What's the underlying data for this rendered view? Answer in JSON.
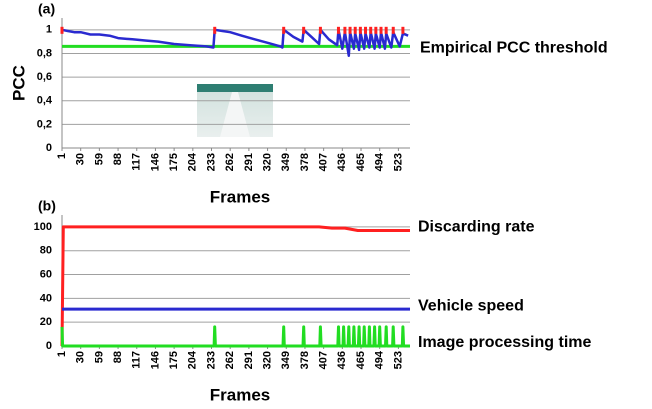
{
  "chart_data": [
    {
      "type": "line",
      "title": "(a)",
      "y_label": "PCC",
      "x_label": "Frames",
      "xlim": [
        1,
        541
      ],
      "ylim": [
        0,
        1.1
      ],
      "xticks": [
        1,
        30,
        59,
        88,
        117,
        146,
        175,
        204,
        233,
        262,
        291,
        320,
        349,
        378,
        407,
        436,
        465,
        494,
        523
      ],
      "yticks": [
        0,
        {
          "value": 0.2,
          "label": "0,2"
        },
        {
          "value": 0.4,
          "label": "0,4"
        },
        {
          "value": 0.6,
          "label": "0,6"
        },
        {
          "value": 0.8,
          "label": "0,8"
        },
        1
      ],
      "grid": true,
      "x": [
        1,
        10,
        20,
        30,
        45,
        59,
        75,
        88,
        110,
        130,
        150,
        175,
        200,
        225,
        236,
        238,
        250,
        262,
        280,
        300,
        320,
        340,
        343,
        345,
        360,
        374,
        376,
        390,
        400,
        402,
        415,
        428,
        430,
        436,
        440,
        446,
        448,
        454,
        456,
        462,
        464,
        470,
        472,
        478,
        480,
        486,
        488,
        494,
        496,
        502,
        504,
        512,
        515,
        525,
        530,
        538
      ],
      "values": [
        1.0,
        0.99,
        0.98,
        0.98,
        0.96,
        0.96,
        0.95,
        0.93,
        0.92,
        0.91,
        0.9,
        0.88,
        0.87,
        0.86,
        0.85,
        1.0,
        0.99,
        0.98,
        0.95,
        0.92,
        0.89,
        0.86,
        0.85,
        1.0,
        0.94,
        0.9,
        1.0,
        0.93,
        0.88,
        1.0,
        0.92,
        0.87,
        1.0,
        0.84,
        0.98,
        0.78,
        0.98,
        0.84,
        0.97,
        0.83,
        0.98,
        0.84,
        0.97,
        0.85,
        0.98,
        0.84,
        0.97,
        0.85,
        0.98,
        0.84,
        0.97,
        0.85,
        0.98,
        0.86,
        0.97,
        0.95
      ],
      "color": "#2a2ad0",
      "markers": {
        "x": [
          1,
          238,
          345,
          376,
          402,
          430,
          440,
          448,
          456,
          464,
          472,
          480,
          488,
          496,
          504,
          515,
          530
        ],
        "values": [
          1,
          1,
          1,
          1,
          1,
          1,
          1,
          1,
          1,
          1,
          1,
          1,
          1,
          1,
          1,
          1,
          1
        ],
        "color": "#ff2020"
      },
      "threshold": 0.86,
      "threshold_label": "Empirical PCC threshold",
      "threshold_color": "#22dd22"
    },
    {
      "type": "line",
      "title": "(b)",
      "x_label": "Frames",
      "xlim": [
        1,
        541
      ],
      "ylim": [
        0,
        110
      ],
      "xticks": [
        1,
        30,
        59,
        88,
        117,
        146,
        175,
        204,
        233,
        262,
        291,
        320,
        349,
        378,
        407,
        436,
        465,
        494,
        523
      ],
      "yticks": [
        0,
        20,
        40,
        60,
        80,
        100
      ],
      "grid": true,
      "series": [
        {
          "name": "Discarding rate",
          "color": "#ff2020",
          "x": [
            1,
            3,
            400,
            420,
            440,
            460,
            541
          ],
          "values": [
            0,
            100,
            100,
            99,
            99,
            97,
            97
          ]
        },
        {
          "name": "Vehicle speed",
          "color": "#2a2ad0",
          "x": [
            1,
            541
          ],
          "values": [
            31,
            31
          ]
        },
        {
          "name": "Image processing time",
          "color": "#22dd22",
          "x": [
            1,
            2,
            237,
            238,
            239,
            344,
            345,
            346,
            375,
            376,
            377,
            401,
            402,
            403,
            429,
            430,
            431,
            437,
            438,
            439,
            445,
            446,
            447,
            453,
            454,
            455,
            461,
            462,
            463,
            469,
            470,
            471,
            477,
            478,
            479,
            485,
            486,
            487,
            493,
            494,
            495,
            503,
            504,
            505,
            514,
            515,
            516,
            529,
            530,
            531,
            541
          ],
          "values": [
            16,
            0,
            0,
            16,
            0,
            0,
            16,
            0,
            0,
            16,
            0,
            0,
            16,
            0,
            0,
            16,
            0,
            0,
            16,
            0,
            0,
            16,
            0,
            0,
            16,
            0,
            0,
            16,
            0,
            0,
            16,
            0,
            0,
            16,
            0,
            0,
            16,
            0,
            0,
            16,
            0,
            0,
            16,
            0,
            0,
            16,
            0,
            0,
            16,
            0,
            0
          ]
        }
      ]
    }
  ]
}
